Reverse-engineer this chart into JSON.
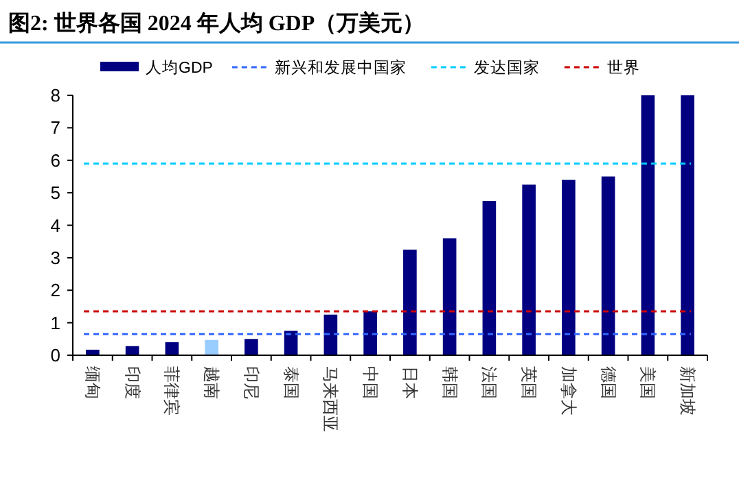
{
  "chart_data": {
    "type": "bar",
    "title": "图2:  世界各国 2024 年人均 GDP（万美元）",
    "categories": [
      "缅甸",
      "印度",
      "菲律宾",
      "越南",
      "印尼",
      "泰国",
      "马来西亚",
      "中国",
      "日本",
      "韩国",
      "法国",
      "英国",
      "加拿大",
      "德国",
      "美国",
      "新加坡"
    ],
    "series": [
      {
        "name": "人均GDP",
        "color": "#000080",
        "colors": [
          "#000080",
          "#000080",
          "#000080",
          "#99ccff",
          "#000080",
          "#000080",
          "#000080",
          "#000080",
          "#000080",
          "#000080",
          "#000080",
          "#000080",
          "#000080",
          "#000080",
          "#000080",
          "#000080"
        ],
        "values": [
          0.17,
          0.28,
          0.4,
          0.47,
          0.5,
          0.75,
          1.25,
          1.35,
          3.25,
          3.6,
          4.75,
          5.25,
          5.4,
          5.5,
          8,
          8
        ]
      }
    ],
    "ref_lines": [
      {
        "axis": "y",
        "value": 0.65,
        "label": "新兴和发展中国家",
        "color": "#3366ff",
        "line_style": "dashed"
      },
      {
        "axis": "y",
        "value": 5.9,
        "label": "发达国家",
        "color": "#00ccff",
        "line_style": "dashed"
      },
      {
        "axis": "y",
        "value": 1.35,
        "label": "世界",
        "color": "#cc0000",
        "line_style": "dashed"
      }
    ],
    "ylim": [
      0,
      8
    ],
    "yticks": [
      0,
      1,
      2,
      3,
      4,
      5,
      6,
      7,
      8
    ],
    "legend": "top"
  }
}
